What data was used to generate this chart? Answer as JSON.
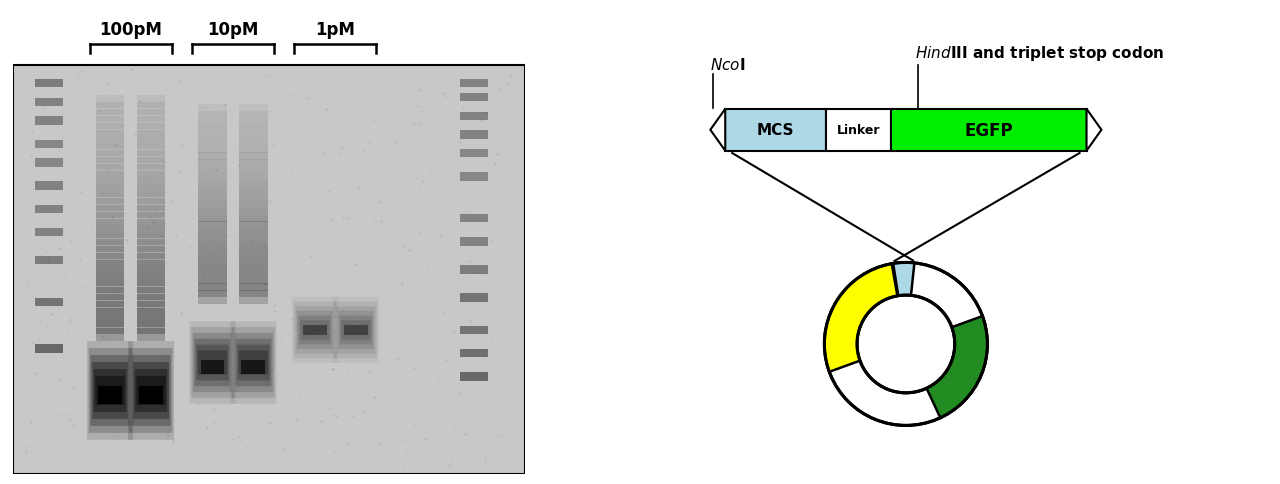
{
  "bg_color": "#ffffff",
  "labels_100pM": "100pM",
  "labels_10pM": "10pM",
  "labels_1pM": "1pM",
  "ncoi_label": "NcoI",
  "hindiii_label": "HindIII and triplet stop codon",
  "mcs_color": "#add8e6",
  "egfp_color": "#00ee00",
  "linker_color": "#ffffff",
  "yellow_color": "#ffff00",
  "dark_green_color": "#228b22",
  "light_blue_color": "#add8e6",
  "gel_bg": "#c8c8c8"
}
